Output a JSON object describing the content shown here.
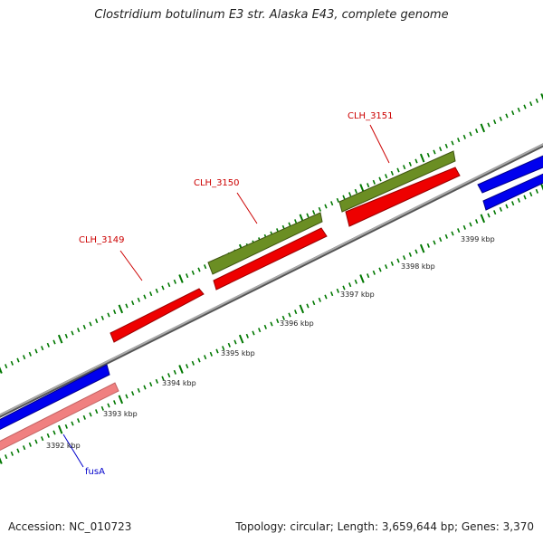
{
  "title": "Clostridium botulinum E3 str. Alaska E43, complete genome",
  "footer": {
    "accession": "Accession: NC_010723",
    "stats": "Topology: circular; Length: 3,659,644 bp; Genes: 3,370"
  },
  "colors": {
    "forward_cds": "#0000ee",
    "reverse_cds": "#ee0000",
    "rrna": "#6b8e23",
    "pseudo": "#f08080",
    "ticks": "#007700",
    "backbone": "#888888",
    "label_red": "#cc0000",
    "label_blue": "#0000cc"
  },
  "scale_labels": [
    "3392 kbp",
    "3393 kbp",
    "3394 kbp",
    "3395 kbp",
    "3396 kbp",
    "3397 kbp",
    "3398 kbp",
    "3399 kbp"
  ],
  "gene_labels": [
    {
      "text": "CLH_3149",
      "color": "red"
    },
    {
      "text": "CLH_3150",
      "color": "red"
    },
    {
      "text": "CLH_3151",
      "color": "red"
    },
    {
      "text": "fusA",
      "color": "blue"
    }
  ]
}
